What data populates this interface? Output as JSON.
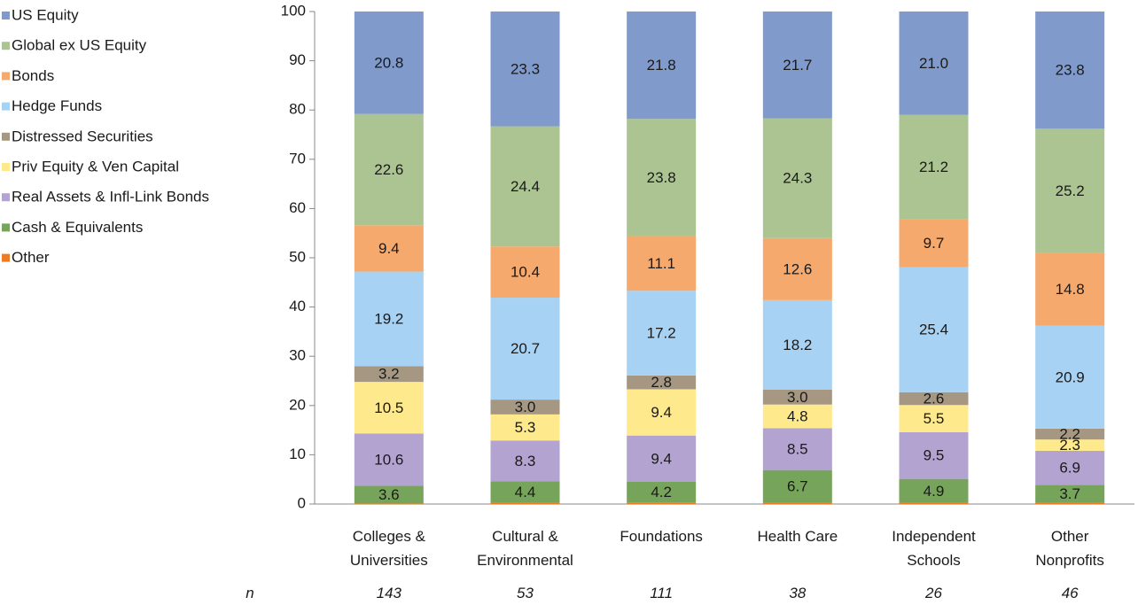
{
  "chart_data": {
    "type": "stacked_bar",
    "categories": [
      "Colleges & Universities",
      "Cultural & Environmental",
      "Foundations",
      "Health Care",
      "Independent Schools",
      "Other Nonprofits"
    ],
    "n_label": "n",
    "n": [
      143,
      53,
      111,
      38,
      26,
      46
    ],
    "ylim": [
      0,
      100
    ],
    "yticks": [
      0,
      10,
      20,
      30,
      40,
      50,
      60,
      70,
      80,
      90,
      100
    ],
    "legend": "top-left",
    "series": [
      {
        "name": "US Equity",
        "color": "#7f9acb",
        "values": [
          20.8,
          23.3,
          21.8,
          21.7,
          21.0,
          23.8
        ],
        "value_labels": [
          "20.8",
          "23.3",
          "21.8",
          "21.7",
          "21.0",
          "23.8"
        ]
      },
      {
        "name": "Global ex US Equity",
        "color": "#abc492",
        "values": [
          22.6,
          24.4,
          23.8,
          24.3,
          21.2,
          25.2
        ],
        "value_labels": [
          "22.6",
          "24.4",
          "23.8",
          "24.3",
          "21.2",
          "25.2"
        ]
      },
      {
        "name": "Bonds",
        "color": "#f5a96c",
        "values": [
          9.4,
          10.4,
          11.1,
          12.6,
          9.7,
          14.8
        ],
        "value_labels": [
          "9.4",
          "10.4",
          "11.1",
          "12.6",
          "9.7",
          "14.8"
        ]
      },
      {
        "name": "Hedge Funds",
        "color": "#a7d2f3",
        "values": [
          19.2,
          20.7,
          17.2,
          18.2,
          25.4,
          20.9
        ],
        "value_labels": [
          "19.2",
          "20.7",
          "17.2",
          "18.2",
          "25.4",
          "20.9"
        ]
      },
      {
        "name": "Distressed Securities",
        "color": "#a59781",
        "values": [
          3.2,
          3.0,
          2.8,
          3.0,
          2.6,
          2.2
        ],
        "value_labels": [
          "3.2",
          "3.0",
          "2.8",
          "3.0",
          "2.6",
          "2.2"
        ]
      },
      {
        "name": "Priv Equity & Ven Capital",
        "color": "#fee98c",
        "values": [
          10.5,
          5.3,
          9.4,
          4.8,
          5.5,
          2.3
        ],
        "value_labels": [
          "10.5",
          "5.3",
          "9.4",
          "4.8",
          "5.5",
          "2.3"
        ]
      },
      {
        "name": "Real Assets & Infl-Link Bonds",
        "color": "#b3a3d0",
        "values": [
          10.6,
          8.3,
          9.4,
          8.5,
          9.5,
          6.9
        ],
        "value_labels": [
          "10.6",
          "8.3",
          "9.4",
          "8.5",
          "9.5",
          "6.9"
        ]
      },
      {
        "name": "Cash & Equivalents",
        "color": "#77a45b",
        "values": [
          3.6,
          4.4,
          4.2,
          6.7,
          4.9,
          3.7
        ],
        "value_labels": [
          "3.6",
          "4.4",
          "4.2",
          "6.7",
          "4.9",
          "3.7"
        ]
      },
      {
        "name": "Other",
        "color": "#ee7b22",
        "values": [
          0.1,
          0.2,
          0.3,
          0.2,
          0.2,
          0.2
        ]
      }
    ]
  }
}
